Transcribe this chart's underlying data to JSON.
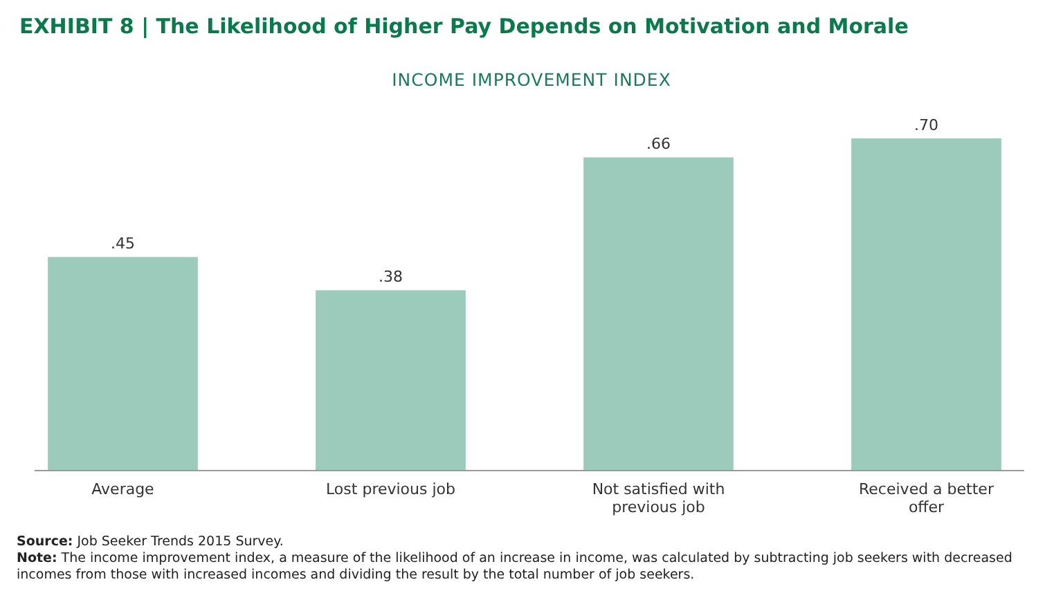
{
  "chart_data": {
    "type": "bar",
    "title": "EXHIBIT 8 | The Likelihood of Higher Pay Depends on Motivation and Morale",
    "subtitle": "INCOME IMPROVEMENT INDEX",
    "categories": [
      "Average",
      "Lost previous job",
      "Not satisfied with previous job",
      "Received a better offer"
    ],
    "values": [
      0.45,
      0.38,
      0.66,
      0.7
    ],
    "value_labels": [
      ".45",
      ".38",
      ".66",
      ".70"
    ],
    "color": "#9ccabb",
    "annotations": [
      "Source: Job Seeker Trends 2015 Survey.",
      "Note: The income improvement index, a measure of the likelihood of an increase in income, was calculated by subtracting job seekers with decreased incomes from those with increased incomes and dividing the result by the total number of job seekers."
    ]
  }
}
